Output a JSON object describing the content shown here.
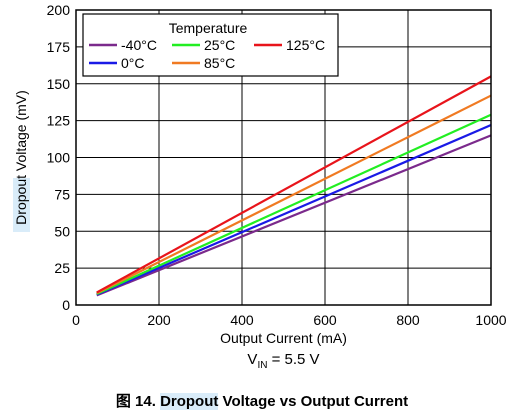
{
  "chart_data": {
    "type": "line",
    "xlabel": "Output Current (mA)",
    "ylabel": "Dropout Voltage (mV)",
    "xlim": [
      0,
      1000
    ],
    "ylim": [
      0,
      200
    ],
    "x_ticks": [
      0,
      200,
      400,
      600,
      800,
      1000
    ],
    "y_ticks": [
      0,
      25,
      50,
      75,
      100,
      125,
      150,
      175,
      200
    ],
    "grid": true,
    "legend": {
      "title": "Temperature",
      "position": "top-left"
    },
    "series": [
      {
        "name": "-40°C",
        "color": "#7b2a8c",
        "x": [
          50,
          1000
        ],
        "y": [
          6.5,
          115
        ]
      },
      {
        "name": "0°C",
        "color": "#1a1ae6",
        "x": [
          50,
          1000
        ],
        "y": [
          7,
          122
        ]
      },
      {
        "name": "25°C",
        "color": "#22ee22",
        "x": [
          50,
          1000
        ],
        "y": [
          7.5,
          129
        ]
      },
      {
        "name": "85°C",
        "color": "#f07a22",
        "x": [
          50,
          1000
        ],
        "y": [
          8,
          142
        ]
      },
      {
        "name": "125°C",
        "color": "#e8141b",
        "x": [
          50,
          1000
        ],
        "y": [
          8.5,
          155
        ]
      }
    ],
    "condition": {
      "main": "V",
      "sub": "IN",
      "rest": " = 5.5 V"
    }
  },
  "caption": {
    "figure_label": "图 14.",
    "title_highlight": "Dropout",
    "title_rest": " Voltage vs Output Current"
  }
}
